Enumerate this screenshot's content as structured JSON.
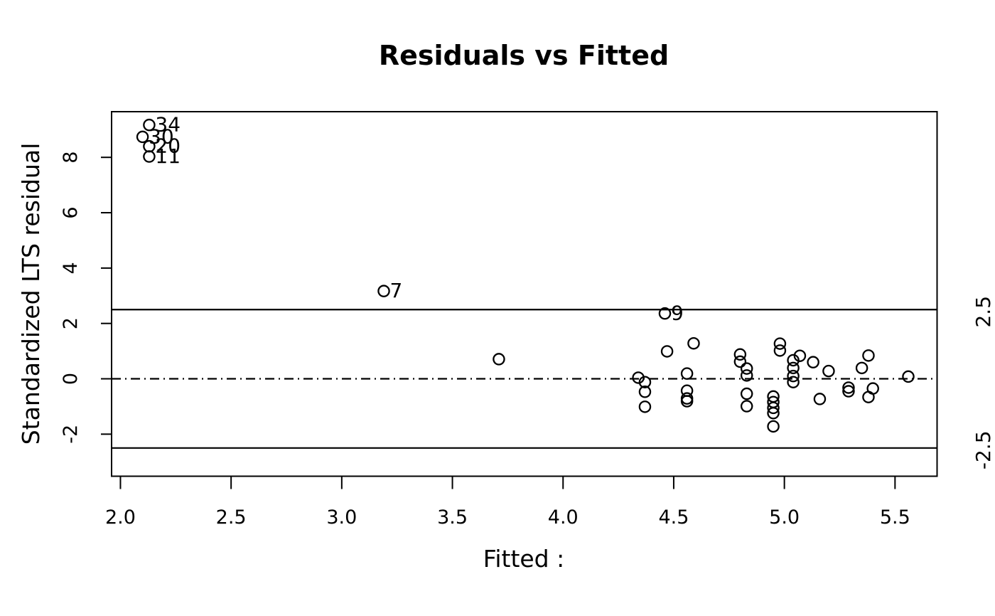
{
  "figure": {
    "background_color": "#ffffff",
    "foreground_color": "#000000"
  },
  "chart_data": {
    "type": "scatter",
    "title": "Residuals vs Fitted",
    "xlabel": "Fitted :",
    "ylabel": "Standardized LTS residual",
    "xlim": [
      1.96,
      5.69
    ],
    "ylim": [
      -3.52,
      9.65
    ],
    "grid": false,
    "legend": null,
    "marker": "open-circle",
    "marker_color": "#000000",
    "x_ticks": [
      {
        "v": 2.0,
        "label": "2.0"
      },
      {
        "v": 2.5,
        "label": "2.5"
      },
      {
        "v": 3.0,
        "label": "3.0"
      },
      {
        "v": 3.5,
        "label": "3.5"
      },
      {
        "v": 4.0,
        "label": "4.0"
      },
      {
        "v": 4.5,
        "label": "4.5"
      },
      {
        "v": 5.0,
        "label": "5.0"
      },
      {
        "v": 5.5,
        "label": "5.5"
      }
    ],
    "y_ticks": [
      {
        "v": -2,
        "label": "-2"
      },
      {
        "v": 0,
        "label": "0"
      },
      {
        "v": 2,
        "label": "2"
      },
      {
        "v": 4,
        "label": "4"
      },
      {
        "v": 6,
        "label": "6"
      },
      {
        "v": 8,
        "label": "8"
      }
    ],
    "hlines": [
      {
        "y": 2.5,
        "style": "solid",
        "right_label": "2.5"
      },
      {
        "y": 0,
        "style": "dotdash",
        "right_label": null
      },
      {
        "y": -2.5,
        "style": "solid",
        "right_label": "-2.5"
      }
    ],
    "points": [
      {
        "x": 2.13,
        "y": 9.17,
        "label": "34"
      },
      {
        "x": 2.1,
        "y": 8.74,
        "label": "30"
      },
      {
        "x": 2.13,
        "y": 8.4,
        "label": "20"
      },
      {
        "x": 2.13,
        "y": 8.03,
        "label": "11"
      },
      {
        "x": 3.19,
        "y": 3.17,
        "label": "7"
      },
      {
        "x": 4.46,
        "y": 2.36,
        "label": "9"
      },
      {
        "x": 3.71,
        "y": 0.71
      },
      {
        "x": 4.34,
        "y": 0.04
      },
      {
        "x": 4.37,
        "y": -0.12
      },
      {
        "x": 4.37,
        "y": -0.47
      },
      {
        "x": 4.37,
        "y": -1.01
      },
      {
        "x": 4.47,
        "y": 0.99
      },
      {
        "x": 4.59,
        "y": 1.28
      },
      {
        "x": 4.56,
        "y": 0.19
      },
      {
        "x": 4.56,
        "y": -0.43
      },
      {
        "x": 4.56,
        "y": -0.71
      },
      {
        "x": 4.56,
        "y": -0.81
      },
      {
        "x": 4.8,
        "y": 0.88
      },
      {
        "x": 4.8,
        "y": 0.62
      },
      {
        "x": 4.83,
        "y": 0.37
      },
      {
        "x": 4.83,
        "y": 0.12
      },
      {
        "x": 4.83,
        "y": -0.54
      },
      {
        "x": 4.83,
        "y": -0.99
      },
      {
        "x": 4.98,
        "y": 1.27
      },
      {
        "x": 4.98,
        "y": 1.02
      },
      {
        "x": 4.95,
        "y": -0.64
      },
      {
        "x": 4.95,
        "y": -0.84
      },
      {
        "x": 4.95,
        "y": -1.05
      },
      {
        "x": 4.95,
        "y": -1.24
      },
      {
        "x": 4.95,
        "y": -1.72
      },
      {
        "x": 5.07,
        "y": 0.83
      },
      {
        "x": 5.04,
        "y": 0.67
      },
      {
        "x": 5.04,
        "y": 0.39
      },
      {
        "x": 5.04,
        "y": 0.1
      },
      {
        "x": 5.04,
        "y": -0.12
      },
      {
        "x": 5.13,
        "y": 0.6
      },
      {
        "x": 5.2,
        "y": 0.28
      },
      {
        "x": 5.16,
        "y": -0.73
      },
      {
        "x": 5.29,
        "y": -0.32
      },
      {
        "x": 5.29,
        "y": -0.45
      },
      {
        "x": 5.38,
        "y": 0.84
      },
      {
        "x": 5.35,
        "y": 0.39
      },
      {
        "x": 5.4,
        "y": -0.35
      },
      {
        "x": 5.38,
        "y": -0.66
      },
      {
        "x": 5.56,
        "y": 0.08
      }
    ]
  }
}
